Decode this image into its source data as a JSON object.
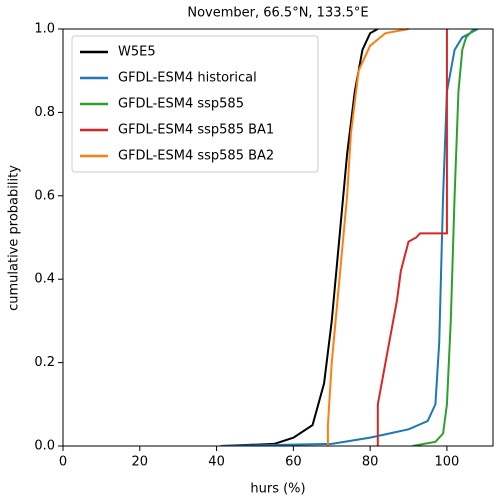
{
  "chart_data": {
    "type": "line",
    "title": "November, 66.5°N, 133.5°E",
    "x_label": "hurs (%)",
    "y_label": "cumulative probability",
    "xlim": [
      0,
      112
    ],
    "ylim": [
      0,
      1
    ],
    "xticks": [
      0,
      20,
      40,
      60,
      80,
      100
    ],
    "yticks": [
      {
        "value": 0,
        "label": "0.0"
      },
      {
        "value": 0.2,
        "label": "0.2"
      },
      {
        "value": 0.4,
        "label": "0.4"
      },
      {
        "value": 0.6,
        "label": "0.6"
      },
      {
        "value": 0.8,
        "label": "0.8"
      },
      {
        "value": 1,
        "label": "1.0"
      }
    ],
    "legend": "upper left",
    "series": [
      {
        "name": "W5E5",
        "color": "#000000",
        "x": [
          41,
          55,
          60,
          65,
          68,
          70,
          72,
          74,
          76,
          78,
          80,
          82
        ],
        "values": [
          0,
          0.005,
          0.02,
          0.05,
          0.15,
          0.3,
          0.5,
          0.7,
          0.85,
          0.95,
          0.99,
          1
        ]
      },
      {
        "name": "GFDL-ESM4 historical",
        "color": "#1f77b4",
        "x": [
          41,
          70,
          80,
          90,
          95,
          97,
          98,
          99,
          100,
          102,
          104,
          108
        ],
        "values": [
          0,
          0.005,
          0.02,
          0.04,
          0.06,
          0.1,
          0.25,
          0.6,
          0.85,
          0.95,
          0.98,
          1
        ]
      },
      {
        "name": "GFDL-ESM4 ssp585",
        "color": "#2ca02c",
        "x": [
          91,
          97,
          99,
          100,
          101,
          102,
          103,
          104,
          105,
          107
        ],
        "values": [
          0,
          0.01,
          0.03,
          0.1,
          0.3,
          0.6,
          0.85,
          0.95,
          0.98,
          1
        ]
      },
      {
        "name": "GFDL-ESM4 ssp585 BA1",
        "color": "#d62728",
        "x": [
          82,
          82,
          83,
          84,
          85,
          86,
          87,
          88,
          90,
          92,
          93,
          100,
          100
        ],
        "values": [
          0,
          0.1,
          0.15,
          0.2,
          0.25,
          0.3,
          0.35,
          0.42,
          0.49,
          0.5,
          0.51,
          0.51,
          1
        ]
      },
      {
        "name": "GFDL-ESM4 ssp585 BA2",
        "color": "#ff7f0e",
        "x": [
          69,
          69,
          70,
          72,
          74,
          75,
          77,
          80,
          84,
          90
        ],
        "values": [
          0,
          0.05,
          0.2,
          0.4,
          0.6,
          0.75,
          0.9,
          0.96,
          0.99,
          1
        ]
      }
    ]
  }
}
